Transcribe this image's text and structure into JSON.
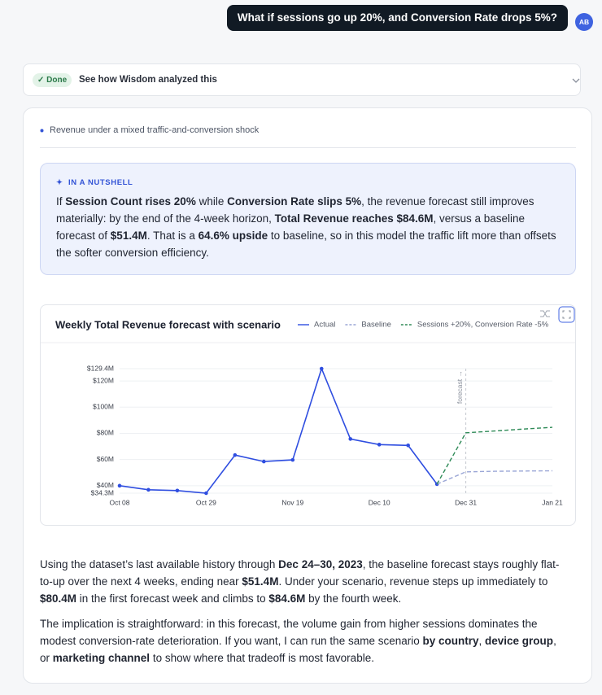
{
  "user_message": "What if sessions go up 20%, and Conversion Rate drops 5%?",
  "avatar": "AB",
  "status": {
    "badge": "Done",
    "label": "See how Wisdom analyzed this"
  },
  "section_title": "Revenue under a mixed traffic-and-conversion shock",
  "nutshell": {
    "label": "IN A NUTSHELL",
    "runs": [
      {
        "text": "If "
      },
      {
        "text": "Session Count rises 20%",
        "bold": true
      },
      {
        "text": " while "
      },
      {
        "text": "Conversion Rate slips 5%",
        "bold": true
      },
      {
        "text": ", the revenue forecast still improves materially: by the end of the 4-week horizon, "
      },
      {
        "text": "Total Revenue reaches $84.6M",
        "bold": true
      },
      {
        "text": ", versus a baseline forecast of "
      },
      {
        "text": "$51.4M",
        "bold": true
      },
      {
        "text": ". That is a "
      },
      {
        "text": "64.6% upside",
        "bold": true
      },
      {
        "text": " to baseline, so in this model the traffic lift more than offsets the softer conversion efficiency."
      }
    ]
  },
  "chart_data": {
    "type": "line",
    "title": "Weekly Total Revenue forecast with scenario",
    "categories": [
      "Oct 08",
      null,
      null,
      "Oct 29",
      null,
      null,
      "Nov 19",
      null,
      null,
      "Dec 10",
      null,
      null,
      "Dec 31",
      null,
      null,
      "Jan 21"
    ],
    "series": [
      {
        "name": "Actual",
        "color": "#2f4ee0",
        "dashed": false,
        "markers": true,
        "values": [
          40.0,
          36.9,
          36.3,
          34.3,
          63.4,
          58.5,
          59.7,
          129.4,
          75.7,
          71.4,
          70.8,
          41.2,
          null,
          null,
          null,
          null
        ]
      },
      {
        "name": "Baseline",
        "color": "#9aa6d6",
        "dashed": true,
        "markers": false,
        "values": [
          null,
          null,
          null,
          null,
          null,
          null,
          null,
          null,
          null,
          null,
          null,
          41.2,
          50.6,
          51.0,
          51.2,
          51.4
        ]
      },
      {
        "name": "Sessions +20%, Conversion Rate -5%",
        "color": "#2e8a57",
        "dashed": true,
        "markers": false,
        "values": [
          null,
          null,
          null,
          null,
          null,
          null,
          null,
          null,
          null,
          null,
          null,
          41.2,
          80.4,
          81.8,
          83.3,
          84.6
        ]
      }
    ],
    "ylim": [
      34.3,
      129.4
    ],
    "yticks": [
      {
        "value": 34.3,
        "label": "$34.3M"
      },
      {
        "value": 40,
        "label": "$40M"
      },
      {
        "value": 60,
        "label": "$60M"
      },
      {
        "value": 80,
        "label": "$80M"
      },
      {
        "value": 100,
        "label": "$100M"
      },
      {
        "value": 120,
        "label": "$120M"
      },
      {
        "value": 129.4,
        "label": "$129.4M"
      }
    ],
    "grid": true,
    "legend": "top-right",
    "annotation": {
      "text": "forecast →",
      "at": "Dec 31"
    }
  },
  "paragraphs": [
    [
      {
        "text": "Using the dataset’s last available history through "
      },
      {
        "text": "Dec 24–30, 2023",
        "bold": true
      },
      {
        "text": ", the baseline forecast stays roughly flat-to-up over the next 4 weeks, ending near "
      },
      {
        "text": "$51.4M",
        "bold": true
      },
      {
        "text": ". Under your scenario, revenue steps up immediately to "
      },
      {
        "text": "$80.4M",
        "bold": true
      },
      {
        "text": " in the first forecast week and climbs to "
      },
      {
        "text": "$84.6M",
        "bold": true
      },
      {
        "text": " by the fourth week."
      }
    ],
    [
      {
        "text": "The implication is straightforward: in this forecast, the volume gain from higher sessions dominates the modest conversion-rate deterioration. If you want, I can run the same scenario "
      },
      {
        "text": "by country",
        "bold": true
      },
      {
        "text": ", "
      },
      {
        "text": "device group",
        "bold": true
      },
      {
        "text": ", or "
      },
      {
        "text": "marketing channel",
        "bold": true
      },
      {
        "text": " to show where that tradeoff is most favorable."
      }
    ]
  ]
}
